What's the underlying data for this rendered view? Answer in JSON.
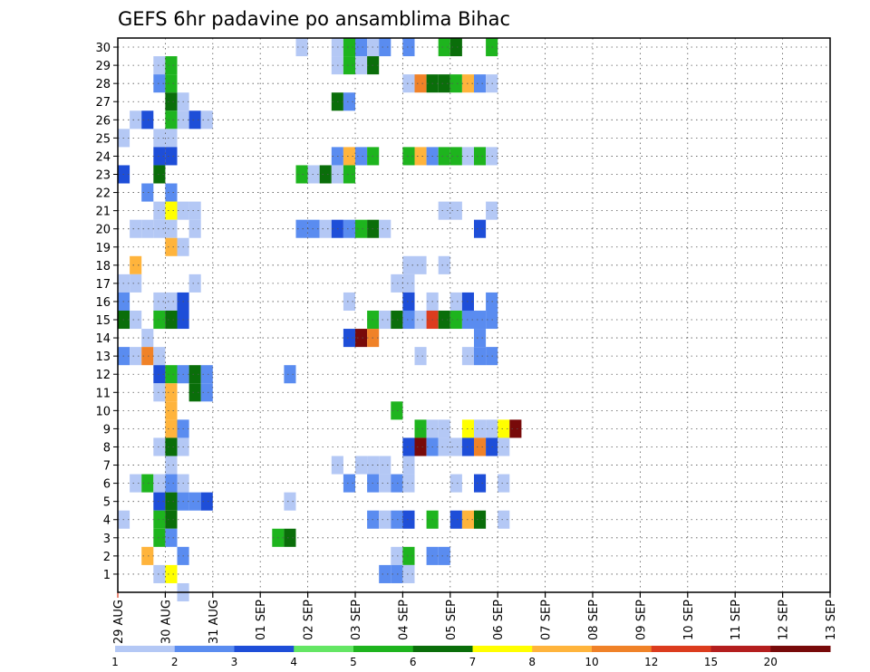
{
  "chart_data": {
    "type": "heatmap",
    "title": "GEFS 6hr padavine po ansamblima Bihac",
    "x_ticks": [
      "29 AUG",
      "30 AUG",
      "31 AUG",
      "01 SEP",
      "02 SEP",
      "03 SEP",
      "04 SEP",
      "05 SEP",
      "06 SEP",
      "07 SEP",
      "08 SEP",
      "09 SEP",
      "10 SEP",
      "11 SEP",
      "12 SEP",
      "13 SEP"
    ],
    "y_ticks": [
      "1",
      "2",
      "3",
      "4",
      "5",
      "6",
      "7",
      "8",
      "9",
      "10",
      "11",
      "12",
      "13",
      "14",
      "15",
      "16",
      "17",
      "18",
      "19",
      "20",
      "21",
      "22",
      "23",
      "24",
      "25",
      "26",
      "27",
      "28",
      "29",
      "30"
    ],
    "steps_per_day": 4,
    "colorbar": {
      "labels": [
        "1",
        "2",
        "3",
        "4",
        "5",
        "6",
        "7",
        "8",
        "10",
        "12",
        "15",
        "20"
      ],
      "colors": [
        "#b4c8f5",
        "#5a8cf0",
        "#1e4ed8",
        "#64e664",
        "#1eb41e",
        "#0a6e0a",
        "#ffff00",
        "#ffb43c",
        "#f08228",
        "#dc3c1e",
        "#b41e1e",
        "#780a0a"
      ]
    },
    "cells": [
      {
        "m": 30,
        "t": [
          [
            15,
            1
          ],
          [
            18,
            1
          ],
          [
            19,
            5
          ],
          [
            20,
            2
          ],
          [
            21,
            1
          ],
          [
            22,
            2
          ],
          [
            24,
            2
          ],
          [
            27,
            5
          ],
          [
            28,
            6
          ],
          [
            31,
            5
          ]
        ]
      },
      {
        "m": 29,
        "t": [
          [
            3,
            1
          ],
          [
            4,
            5
          ],
          [
            18,
            1
          ],
          [
            19,
            5
          ],
          [
            20,
            1
          ],
          [
            21,
            6
          ]
        ]
      },
      {
        "m": 28,
        "t": [
          [
            3,
            2
          ],
          [
            4,
            5
          ],
          [
            24,
            1
          ],
          [
            25,
            9
          ],
          [
            26,
            6
          ],
          [
            27,
            6
          ],
          [
            28,
            5
          ],
          [
            29,
            8
          ],
          [
            30,
            2
          ],
          [
            31,
            1
          ]
        ]
      },
      {
        "m": 27,
        "t": [
          [
            4,
            6
          ],
          [
            5,
            1
          ],
          [
            18,
            6
          ],
          [
            19,
            2
          ]
        ]
      },
      {
        "m": 26,
        "t": [
          [
            1,
            1
          ],
          [
            2,
            3
          ],
          [
            4,
            5
          ],
          [
            5,
            1
          ],
          [
            6,
            3
          ],
          [
            7,
            1
          ]
        ]
      },
      {
        "m": 25,
        "t": [
          [
            0,
            1
          ],
          [
            3,
            1
          ],
          [
            4,
            1
          ]
        ]
      },
      {
        "m": 24,
        "t": [
          [
            3,
            3
          ],
          [
            4,
            3
          ],
          [
            18,
            2
          ],
          [
            19,
            8
          ],
          [
            20,
            2
          ],
          [
            21,
            5
          ],
          [
            24,
            5
          ],
          [
            25,
            8
          ],
          [
            26,
            2
          ],
          [
            27,
            5
          ],
          [
            28,
            5
          ],
          [
            29,
            1
          ],
          [
            30,
            5
          ],
          [
            31,
            1
          ]
        ]
      },
      {
        "m": 23,
        "t": [
          [
            0,
            3
          ],
          [
            3,
            6
          ],
          [
            15,
            5
          ],
          [
            16,
            1
          ],
          [
            17,
            6
          ],
          [
            18,
            1
          ],
          [
            19,
            5
          ]
        ]
      },
      {
        "m": 22,
        "t": [
          [
            2,
            2
          ],
          [
            4,
            2
          ]
        ]
      },
      {
        "m": 21,
        "t": [
          [
            3,
            1
          ],
          [
            4,
            7
          ],
          [
            5,
            1
          ],
          [
            6,
            1
          ],
          [
            27,
            1
          ],
          [
            28,
            1
          ],
          [
            31,
            1
          ]
        ]
      },
      {
        "m": 20,
        "t": [
          [
            1,
            1
          ],
          [
            2,
            1
          ],
          [
            3,
            1
          ],
          [
            4,
            1
          ],
          [
            6,
            1
          ],
          [
            15,
            2
          ],
          [
            16,
            2
          ],
          [
            17,
            1
          ],
          [
            18,
            3
          ],
          [
            19,
            2
          ],
          [
            20,
            5
          ],
          [
            21,
            6
          ],
          [
            22,
            1
          ],
          [
            30,
            3
          ]
        ]
      },
      {
        "m": 19,
        "t": [
          [
            4,
            8
          ],
          [
            5,
            1
          ]
        ]
      },
      {
        "m": 18,
        "t": [
          [
            1,
            8
          ],
          [
            24,
            1
          ],
          [
            25,
            1
          ],
          [
            27,
            1
          ]
        ]
      },
      {
        "m": 17,
        "t": [
          [
            0,
            1
          ],
          [
            1,
            1
          ],
          [
            6,
            1
          ],
          [
            23,
            1
          ],
          [
            24,
            1
          ]
        ]
      },
      {
        "m": 16,
        "t": [
          [
            0,
            2
          ],
          [
            3,
            1
          ],
          [
            4,
            1
          ],
          [
            5,
            3
          ],
          [
            19,
            1
          ],
          [
            24,
            3
          ],
          [
            26,
            1
          ],
          [
            28,
            1
          ],
          [
            29,
            3
          ],
          [
            31,
            2
          ]
        ]
      },
      {
        "m": 15,
        "t": [
          [
            0,
            6
          ],
          [
            1,
            1
          ],
          [
            3,
            5
          ],
          [
            4,
            6
          ],
          [
            5,
            3
          ],
          [
            21,
            5
          ],
          [
            22,
            1
          ],
          [
            23,
            6
          ],
          [
            24,
            2
          ],
          [
            25,
            1
          ],
          [
            26,
            10
          ],
          [
            27,
            6
          ],
          [
            28,
            5
          ],
          [
            29,
            2
          ],
          [
            30,
            2
          ],
          [
            31,
            2
          ]
        ]
      },
      {
        "m": 14,
        "t": [
          [
            2,
            1
          ],
          [
            19,
            3
          ],
          [
            20,
            12
          ],
          [
            21,
            9
          ],
          [
            30,
            2
          ]
        ]
      },
      {
        "m": 13,
        "t": [
          [
            0,
            2
          ],
          [
            1,
            1
          ],
          [
            2,
            9
          ],
          [
            3,
            1
          ],
          [
            25,
            1
          ],
          [
            29,
            1
          ],
          [
            30,
            2
          ],
          [
            31,
            2
          ]
        ]
      },
      {
        "m": 12,
        "t": [
          [
            3,
            3
          ],
          [
            4,
            5
          ],
          [
            5,
            2
          ],
          [
            6,
            6
          ],
          [
            7,
            2
          ],
          [
            14,
            2
          ]
        ]
      },
      {
        "m": 11,
        "t": [
          [
            3,
            1
          ],
          [
            4,
            8
          ],
          [
            6,
            6
          ],
          [
            7,
            2
          ]
        ]
      },
      {
        "m": 10,
        "t": [
          [
            4,
            8
          ],
          [
            23,
            5
          ]
        ]
      },
      {
        "m": 9,
        "t": [
          [
            4,
            8
          ],
          [
            5,
            2
          ],
          [
            25,
            5
          ],
          [
            26,
            1
          ],
          [
            27,
            1
          ],
          [
            29,
            7
          ],
          [
            30,
            1
          ],
          [
            31,
            1
          ],
          [
            32,
            7
          ],
          [
            33,
            12
          ]
        ]
      },
      {
        "m": 8,
        "t": [
          [
            3,
            1
          ],
          [
            4,
            6
          ],
          [
            5,
            1
          ],
          [
            24,
            3
          ],
          [
            25,
            12
          ],
          [
            26,
            2
          ],
          [
            27,
            1
          ],
          [
            28,
            1
          ],
          [
            29,
            3
          ],
          [
            30,
            9
          ],
          [
            31,
            3
          ],
          [
            32,
            1
          ]
        ]
      },
      {
        "m": 7,
        "t": [
          [
            4,
            1
          ],
          [
            18,
            1
          ],
          [
            20,
            1
          ],
          [
            21,
            1
          ],
          [
            22,
            1
          ],
          [
            24,
            1
          ]
        ]
      },
      {
        "m": 6,
        "t": [
          [
            1,
            1
          ],
          [
            2,
            5
          ],
          [
            3,
            1
          ],
          [
            4,
            2
          ],
          [
            5,
            1
          ],
          [
            19,
            2
          ],
          [
            21,
            2
          ],
          [
            22,
            1
          ],
          [
            23,
            2
          ],
          [
            24,
            1
          ],
          [
            28,
            1
          ],
          [
            30,
            3
          ],
          [
            32,
            1
          ]
        ]
      },
      {
        "m": 5,
        "t": [
          [
            3,
            3
          ],
          [
            4,
            6
          ],
          [
            5,
            2
          ],
          [
            6,
            2
          ],
          [
            7,
            3
          ],
          [
            14,
            1
          ]
        ]
      },
      {
        "m": 4,
        "t": [
          [
            0,
            1
          ],
          [
            3,
            5
          ],
          [
            4,
            6
          ],
          [
            21,
            2
          ],
          [
            22,
            1
          ],
          [
            23,
            2
          ],
          [
            24,
            3
          ],
          [
            26,
            5
          ],
          [
            28,
            3
          ],
          [
            29,
            8
          ],
          [
            30,
            6
          ],
          [
            32,
            1
          ]
        ]
      },
      {
        "m": 3,
        "t": [
          [
            3,
            5
          ],
          [
            4,
            2
          ],
          [
            13,
            5
          ],
          [
            14,
            6
          ]
        ]
      },
      {
        "m": 2,
        "t": [
          [
            2,
            8
          ],
          [
            5,
            2
          ],
          [
            23,
            1
          ],
          [
            24,
            5
          ],
          [
            26,
            2
          ],
          [
            27,
            2
          ]
        ]
      },
      {
        "m": 1,
        "t": [
          [
            3,
            1
          ],
          [
            4,
            7
          ],
          [
            22,
            2
          ],
          [
            23,
            2
          ],
          [
            24,
            1
          ]
        ]
      },
      {
        "m": 0,
        "t": [
          [
            5,
            1
          ]
        ]
      }
    ]
  }
}
